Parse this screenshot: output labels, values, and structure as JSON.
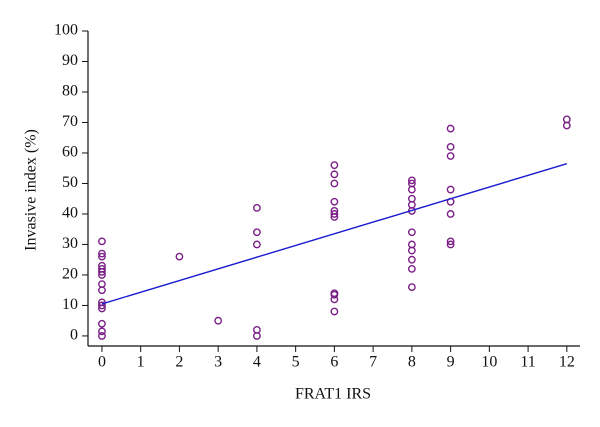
{
  "chart_data": {
    "type": "scatter",
    "xlabel": "FRAT1 IRS",
    "ylabel": "Invasive index (%)",
    "x": [
      0,
      0,
      0,
      0,
      0,
      0,
      0,
      0,
      0,
      0,
      0,
      0,
      0,
      0,
      0,
      2,
      3,
      4,
      4,
      4,
      4,
      4,
      6,
      6,
      6,
      6,
      6,
      6,
      6,
      6,
      6,
      6,
      6,
      8,
      8,
      8,
      8,
      8,
      8,
      8,
      8,
      8,
      8,
      8,
      8,
      9,
      9,
      9,
      9,
      9,
      9,
      9,
      9,
      12,
      12
    ],
    "values": [
      31,
      27,
      26,
      23,
      22,
      21,
      20,
      17,
      15,
      11,
      10,
      9,
      4,
      1.5,
      0,
      26,
      5,
      42,
      34,
      30,
      2,
      0,
      56,
      53,
      50,
      44,
      41,
      40,
      39,
      14,
      13.5,
      12,
      8,
      51,
      50,
      48,
      45,
      43,
      41,
      34,
      30,
      28,
      25,
      22,
      16,
      68,
      62,
      59,
      48,
      44,
      40,
      31,
      30,
      71,
      69
    ],
    "color": "#7a1f86",
    "trendline": {
      "x": [
        0,
        12
      ],
      "values": [
        10.5,
        56.5
      ],
      "color": "#1c1cd0"
    },
    "xlim": [
      -0.36,
      12.34
    ],
    "ylim": [
      -3.3,
      100
    ],
    "xticks": [
      0,
      1,
      2,
      3,
      4,
      5,
      6,
      7,
      8,
      9,
      10,
      11,
      12
    ],
    "yticks": [
      0,
      10,
      20,
      30,
      40,
      50,
      60,
      70,
      80,
      90,
      100
    ]
  }
}
